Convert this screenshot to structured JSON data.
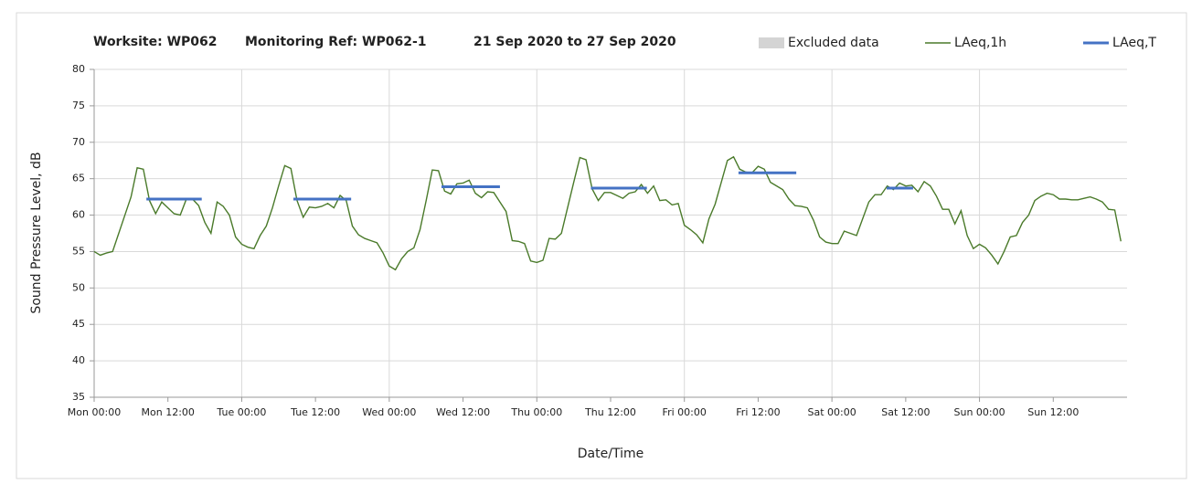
{
  "chart_data": {
    "type": "line",
    "title_parts": [
      "Worksite: WP062",
      "Monitoring Ref: WP062-1",
      "21 Sep 2020 to 27 Sep 2020"
    ],
    "y_label": "Sound Pressure Level, dB",
    "x_label": "Date/Time",
    "xlim": [
      0,
      168
    ],
    "ylim": [
      35,
      80
    ],
    "yticks": [
      35,
      40,
      45,
      50,
      55,
      60,
      65,
      70,
      75,
      80
    ],
    "xticks": [
      {
        "value": 0,
        "label": "Mon 00:00"
      },
      {
        "value": 12,
        "label": "Mon 12:00"
      },
      {
        "value": 24,
        "label": "Tue 00:00"
      },
      {
        "value": 36,
        "label": "Tue 12:00"
      },
      {
        "value": 48,
        "label": "Wed 00:00"
      },
      {
        "value": 60,
        "label": "Wed 12:00"
      },
      {
        "value": 72,
        "label": "Thu 00:00"
      },
      {
        "value": 84,
        "label": "Thu 12:00"
      },
      {
        "value": 96,
        "label": "Fri 00:00"
      },
      {
        "value": 108,
        "label": "Fri 12:00"
      },
      {
        "value": 120,
        "label": "Sat 00:00"
      },
      {
        "value": 132,
        "label": "Sat 12:00"
      },
      {
        "value": 144,
        "label": "Sun 00:00"
      },
      {
        "value": 156,
        "label": "Sun 12:00"
      }
    ],
    "grid": true,
    "series": [
      {
        "name": "Excluded data",
        "color": "#d4d4d4",
        "x": [],
        "values": []
      },
      {
        "name": "LAeq,1h",
        "color": "#4a7a2a",
        "x": [
          0,
          1,
          2,
          3,
          4,
          5,
          6,
          7,
          8,
          9,
          10,
          11,
          12,
          13,
          14,
          15,
          16,
          17,
          18,
          19,
          20,
          21,
          22,
          23,
          24,
          25,
          26,
          27,
          28,
          29,
          30,
          31,
          32,
          33,
          34,
          35,
          36,
          37,
          38,
          39,
          40,
          41,
          42,
          43,
          44,
          45,
          46,
          47,
          48,
          49,
          50,
          51,
          52,
          53,
          54,
          55,
          56,
          57,
          58,
          59,
          60,
          61,
          62,
          63,
          64,
          65,
          66,
          67,
          68,
          69,
          70,
          71,
          72,
          73,
          74,
          75,
          76,
          77,
          78,
          79,
          80,
          81,
          82,
          83,
          84,
          85,
          86,
          87,
          88,
          89,
          90,
          91,
          92,
          93,
          94,
          95,
          96,
          97,
          98,
          99,
          100,
          101,
          102,
          103,
          104,
          105,
          106,
          107,
          108,
          109,
          110,
          111,
          112,
          113,
          114,
          115,
          116,
          117,
          118,
          119,
          120,
          121,
          122,
          123,
          124,
          125,
          126,
          127,
          128,
          129,
          130,
          131,
          132,
          133,
          134,
          135,
          136,
          137,
          138,
          139,
          140,
          141,
          142,
          143,
          144,
          145,
          146,
          147,
          148,
          149,
          150,
          151,
          152,
          153,
          154,
          155,
          156,
          157,
          158,
          159,
          160,
          161,
          162,
          163,
          164,
          165,
          166,
          167
        ],
        "values": [
          55,
          54.5,
          54.8,
          55,
          57.5,
          60,
          62.5,
          66.5,
          66.3,
          62,
          60.2,
          61.8,
          61,
          60.2,
          60,
          62.2,
          62.2,
          61.3,
          59,
          57.5,
          61.8,
          61.2,
          60,
          57,
          56,
          55.6,
          55.4,
          57.2,
          58.5,
          61,
          64,
          66.8,
          66.4,
          62,
          59.7,
          61.1,
          61,
          61.2,
          61.6,
          61,
          62.7,
          62,
          58.5,
          57.3,
          56.8,
          56.5,
          56.2,
          54.8,
          53,
          52.5,
          54,
          55,
          55.5,
          58,
          62,
          66.2,
          66.1,
          63.3,
          62.9,
          64.3,
          64.4,
          64.8,
          63,
          62.4,
          63.2,
          63.1,
          61.8,
          60.5,
          56.5,
          56.4,
          56.1,
          53.7,
          53.5,
          53.8,
          56.8,
          56.7,
          57.5,
          61,
          64.5,
          67.9,
          67.6,
          63.6,
          62,
          63.1,
          63.1,
          62.7,
          62.3,
          63,
          63.2,
          64.2,
          63,
          64,
          62,
          62.1,
          61.4,
          61.6,
          58.6,
          58,
          57.3,
          56.2,
          59.5,
          61.5,
          64.5,
          67.5,
          68,
          66.3,
          65.9,
          65.8,
          66.7,
          66.3,
          64.5,
          64,
          63.5,
          62.2,
          61.3,
          61.2,
          61,
          59.3,
          57,
          56.3,
          56.1,
          56.1,
          57.8,
          57.5,
          57.2,
          59.5,
          61.8,
          62.8,
          62.8,
          64,
          63.5,
          64.4,
          64,
          64.1,
          63.2,
          64.6,
          64,
          62.6,
          60.8,
          60.8,
          58.8,
          60.6,
          57.2,
          55.4,
          56,
          55.5,
          54.5,
          53.3,
          55,
          57,
          57.2,
          59,
          60,
          62,
          62.6,
          63,
          62.8,
          62.2,
          62.2,
          62.1,
          62.1,
          62.3,
          62.5,
          62.2,
          61.8,
          60.8,
          60.7,
          56.4
        ]
      },
      {
        "name": "LAeq,T",
        "color": "#4472c4",
        "x": [
          8.5,
          17.5,
          25,
          32.4,
          41.8,
          50,
          56.5,
          66,
          75,
          80.8,
          89.9,
          100,
          104.8,
          114.2,
          120,
          128.9,
          133.2
        ],
        "values": [
          62.2,
          62.2,
          null,
          62.2,
          62.2,
          null,
          63.9,
          63.9,
          null,
          63.7,
          63.7,
          null,
          65.8,
          65.8,
          null,
          63.7,
          63.7
        ]
      }
    ]
  }
}
